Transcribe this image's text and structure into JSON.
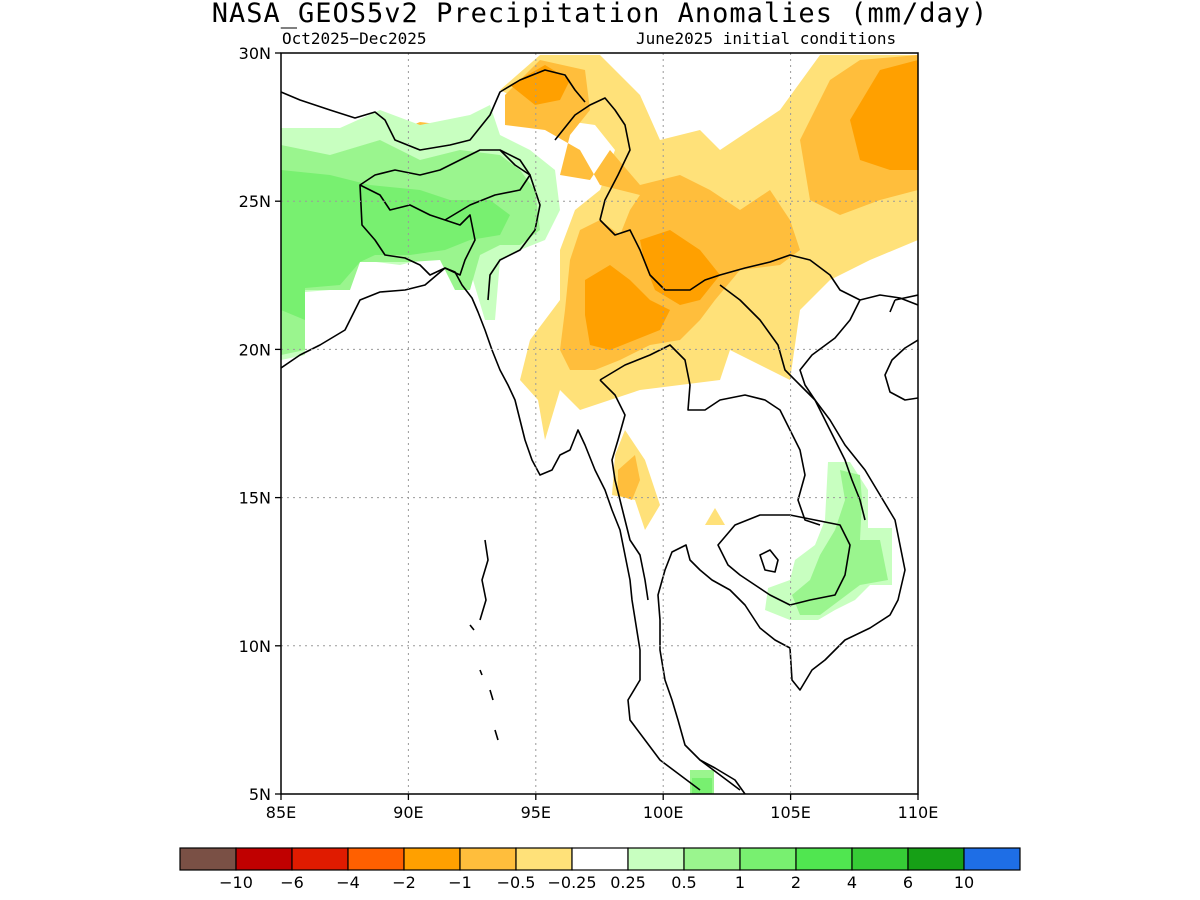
{
  "title": "NASA_GEOS5v2 Precipitation Anomalies (mm/day)",
  "period": "Oct2025−Dec2025",
  "initial_conditions": "June2025 initial conditions",
  "map": {
    "lat_ticks": [
      "30N",
      "25N",
      "20N",
      "15N",
      "10N",
      "5N"
    ],
    "lon_ticks": [
      "85E",
      "90E",
      "95E",
      "100E",
      "105E",
      "110E"
    ],
    "lat_range": [
      5,
      30
    ],
    "lon_range": [
      85,
      110
    ],
    "grid": true
  },
  "colorbar": {
    "colors": [
      "#7a5045",
      "#c00000",
      "#e01b00",
      "#ff6000",
      "#ffa000",
      "#ffbe3c",
      "#ffe179",
      "#ffffff",
      "#c8ffc0",
      "#9af58e",
      "#78f070",
      "#50e650",
      "#36cc36",
      "#16a016",
      "#1e6ee6"
    ],
    "labels": [
      "−10",
      "−6",
      "−4",
      "−2",
      "−1",
      "−0.5",
      "−0.25",
      "0.25",
      "0.5",
      "1",
      "2",
      "4",
      "6",
      "10"
    ]
  },
  "anomaly_colors": {
    "dry_weak": "#ffe179",
    "dry_moderate": "#ffbe3c",
    "dry_strong": "#ffa000",
    "wet_weak": "#c8ffc0",
    "wet_moderate": "#9af58e",
    "wet_strong": "#78f070"
  }
}
